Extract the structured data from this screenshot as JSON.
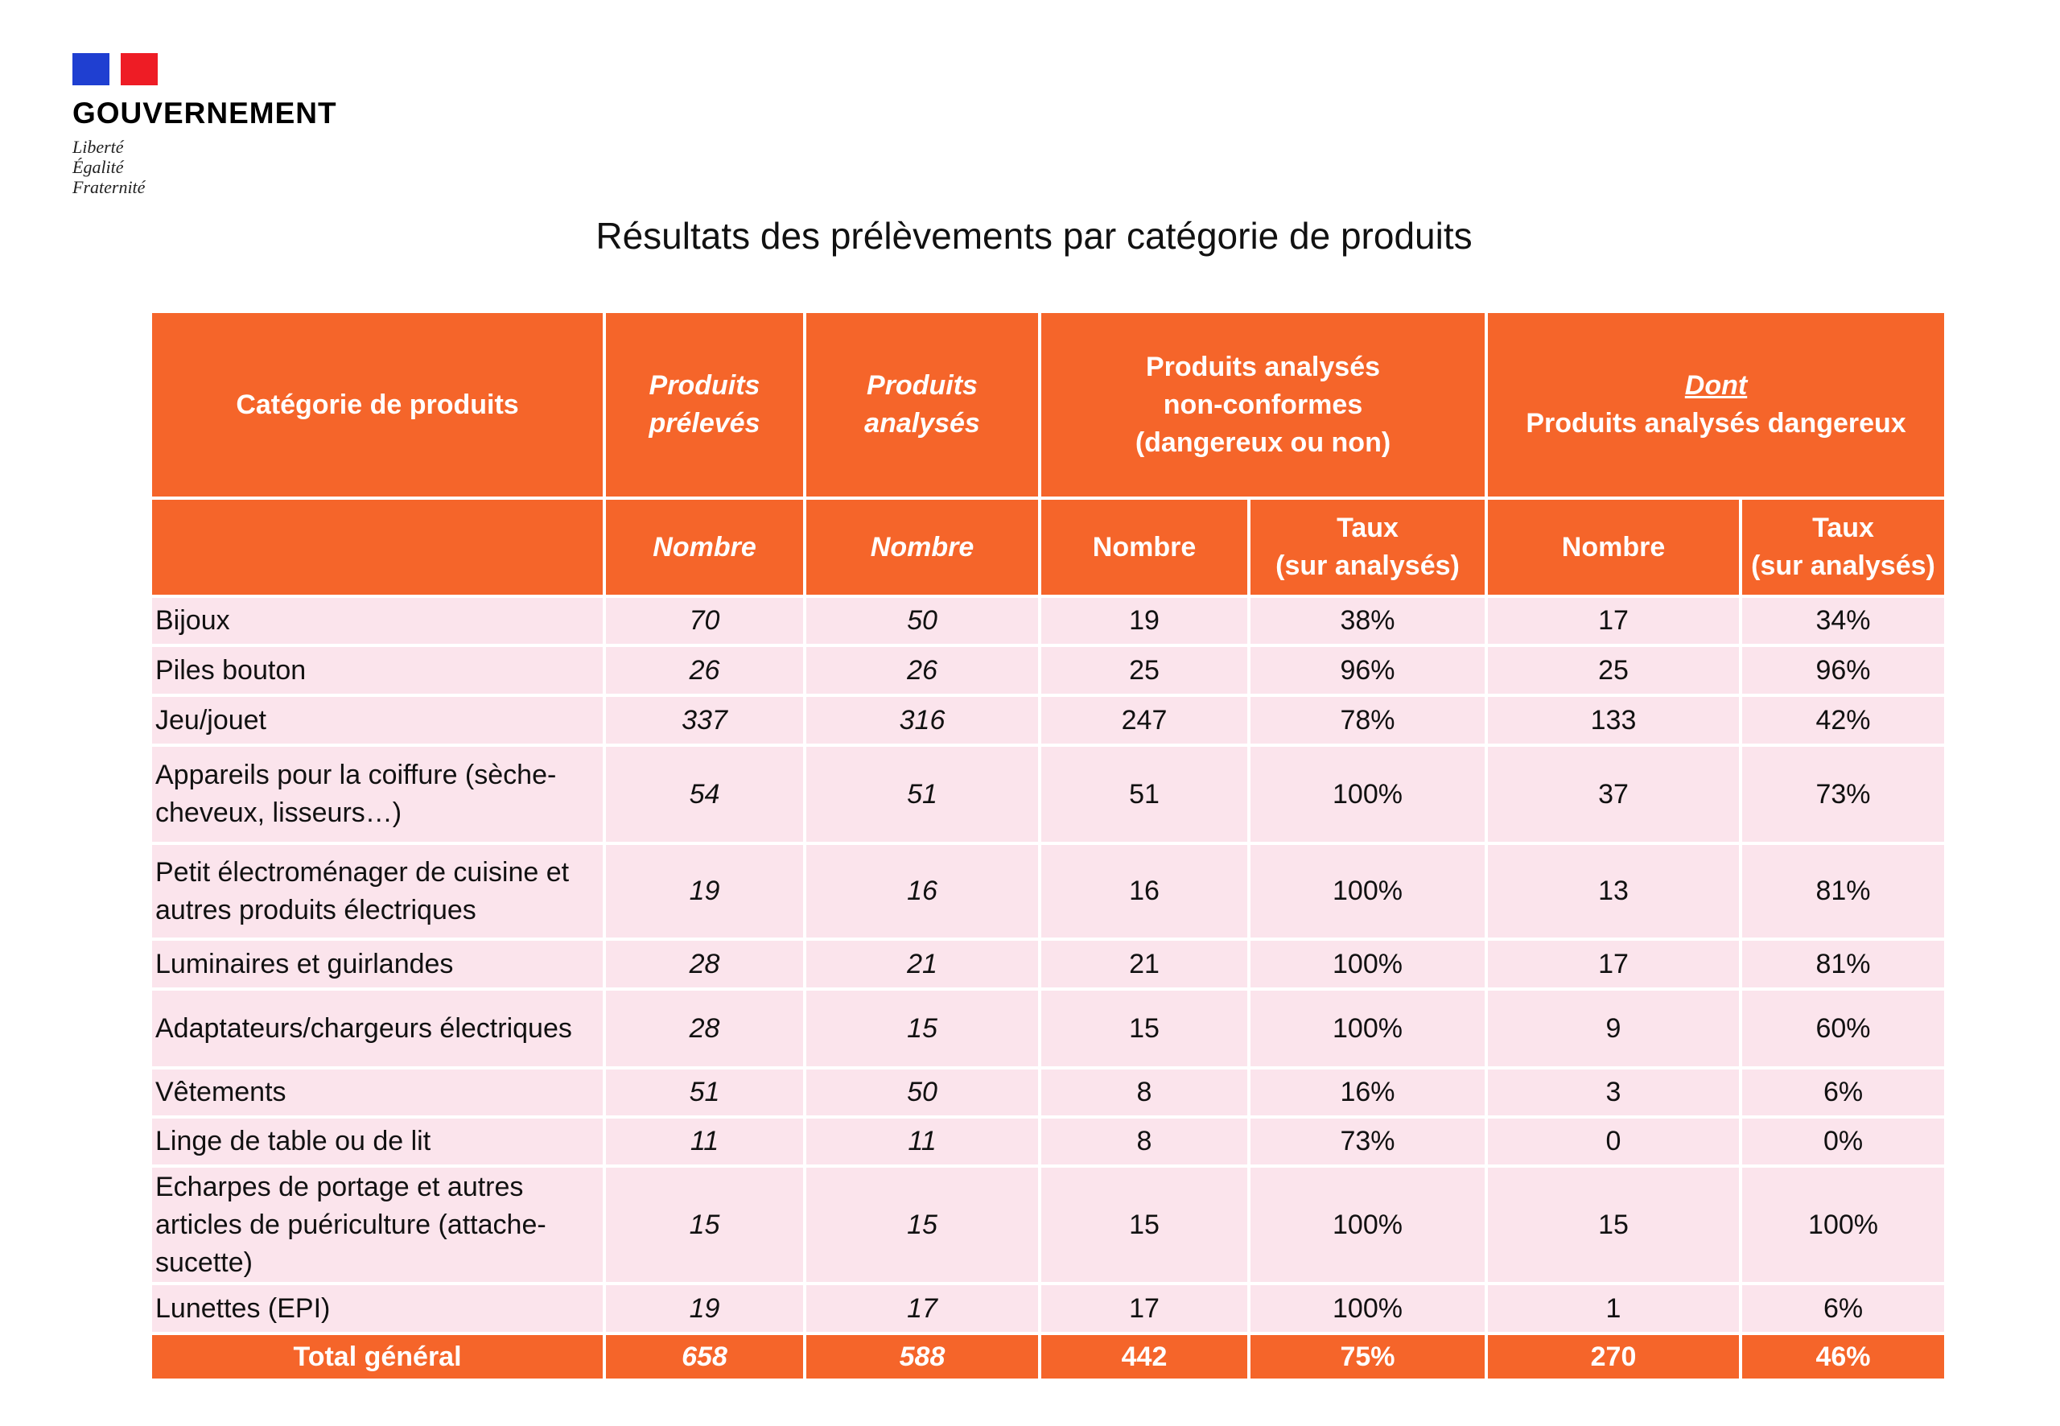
{
  "logo": {
    "name": "GOUVERNEMENT",
    "motto": [
      "Liberté",
      "Égalité",
      "Fraternité"
    ]
  },
  "title": "Résultats des prélèvements par catégorie de produits",
  "header": {
    "category": "Catégorie de produits",
    "preleves": [
      "Produits",
      "prélevés"
    ],
    "analyses": [
      "Produits",
      "analysés"
    ],
    "nonconformes": [
      "Produits analysés",
      "non-conformes",
      "(dangereux ou non)"
    ],
    "dangereux_dont": "Dont",
    "dangereux": "Produits analysés dangereux",
    "nombre": "Nombre",
    "taux": [
      "Taux",
      "(sur analysés)"
    ]
  },
  "rows": [
    {
      "category": "Bijoux",
      "preleves": "70",
      "analyses": "50",
      "nc_nombre": "19",
      "nc_taux": "38%",
      "d_nombre": "17",
      "d_taux": "34%"
    },
    {
      "category": "Piles bouton",
      "preleves": "26",
      "analyses": "26",
      "nc_nombre": "25",
      "nc_taux": "96%",
      "d_nombre": "25",
      "d_taux": "96%"
    },
    {
      "category": "Jeu/jouet",
      "preleves": "337",
      "analyses": "316",
      "nc_nombre": "247",
      "nc_taux": "78%",
      "d_nombre": "133",
      "d_taux": "42%"
    },
    {
      "category": "Appareils pour la coiffure (sèche-cheveux, lisseurs…)",
      "preleves": "54",
      "analyses": "51",
      "nc_nombre": "51",
      "nc_taux": "100%",
      "d_nombre": "37",
      "d_taux": "73%"
    },
    {
      "category": "Petit électroménager de cuisine et autres produits électriques",
      "preleves": "19",
      "analyses": "16",
      "nc_nombre": "16",
      "nc_taux": "100%",
      "d_nombre": "13",
      "d_taux": "81%"
    },
    {
      "category": "Luminaires et guirlandes",
      "preleves": "28",
      "analyses": "21",
      "nc_nombre": "21",
      "nc_taux": "100%",
      "d_nombre": "17",
      "d_taux": "81%"
    },
    {
      "category": "Adaptateurs/chargeurs électriques",
      "preleves": "28",
      "analyses": "15",
      "nc_nombre": "15",
      "nc_taux": "100%",
      "d_nombre": "9",
      "d_taux": "60%"
    },
    {
      "category": "Vêtements",
      "preleves": "51",
      "analyses": "50",
      "nc_nombre": "8",
      "nc_taux": "16%",
      "d_nombre": "3",
      "d_taux": "6%"
    },
    {
      "category": "Linge de table ou de lit",
      "preleves": "11",
      "analyses": "11",
      "nc_nombre": "8",
      "nc_taux": "73%",
      "d_nombre": "0",
      "d_taux": "0%"
    },
    {
      "category": "Echarpes de portage et autres articles de puériculture (attache-sucette)",
      "preleves": "15",
      "analyses": "15",
      "nc_nombre": "15",
      "nc_taux": "100%",
      "d_nombre": "15",
      "d_taux": "100%"
    },
    {
      "category": "Lunettes (EPI)",
      "preleves": "19",
      "analyses": "17",
      "nc_nombre": "17",
      "nc_taux": "100%",
      "d_nombre": "1",
      "d_taux": "6%"
    }
  ],
  "total": {
    "category": "Total général",
    "preleves": "658",
    "analyses": "588",
    "nc_nombre": "442",
    "nc_taux": "75%",
    "d_nombre": "270",
    "d_taux": "46%"
  }
}
